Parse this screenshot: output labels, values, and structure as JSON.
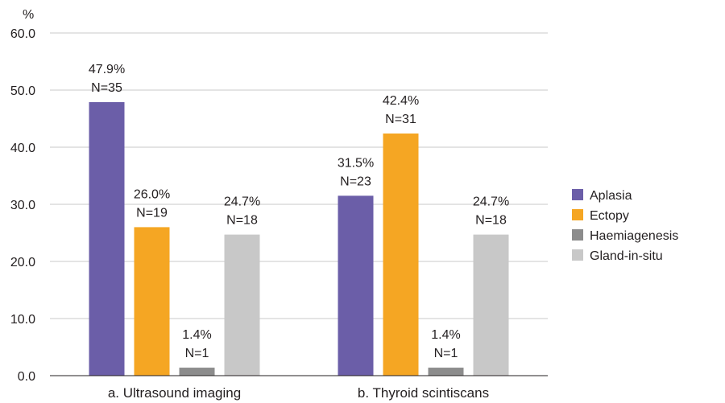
{
  "chart_data": {
    "type": "bar",
    "unit_label": "%",
    "categories": [
      "a. Ultrasound imaging",
      "b. Thyroid scintiscans"
    ],
    "series": [
      {
        "name": "Aplasia",
        "color": "#6b5ea8",
        "values": [
          47.9,
          31.5
        ],
        "labels": [
          "47.9%",
          "31.5%"
        ],
        "counts": [
          "N=35",
          "N=23"
        ]
      },
      {
        "name": "Ectopy",
        "color": "#f5a623",
        "values": [
          26.0,
          42.4
        ],
        "labels": [
          "26.0%",
          "42.4%"
        ],
        "counts": [
          "N=19",
          "N=31"
        ]
      },
      {
        "name": "Haemiagenesis",
        "color": "#8c8c8c",
        "values": [
          1.4,
          1.4
        ],
        "labels": [
          "1.4%",
          "1.4%"
        ],
        "counts": [
          "N=1",
          "N=1"
        ]
      },
      {
        "name": "Gland-in-situ",
        "color": "#c8c8c8",
        "values": [
          24.7,
          24.7
        ],
        "labels": [
          "24.7%",
          "24.7%"
        ],
        "counts": [
          "N=18",
          "N=18"
        ]
      }
    ],
    "ylim": [
      0,
      60
    ],
    "yticks": [
      "0.0",
      "10.0",
      "20.0",
      "30.0",
      "40.0",
      "50.0",
      "60.0"
    ],
    "grid": true,
    "legend_position": "right"
  }
}
